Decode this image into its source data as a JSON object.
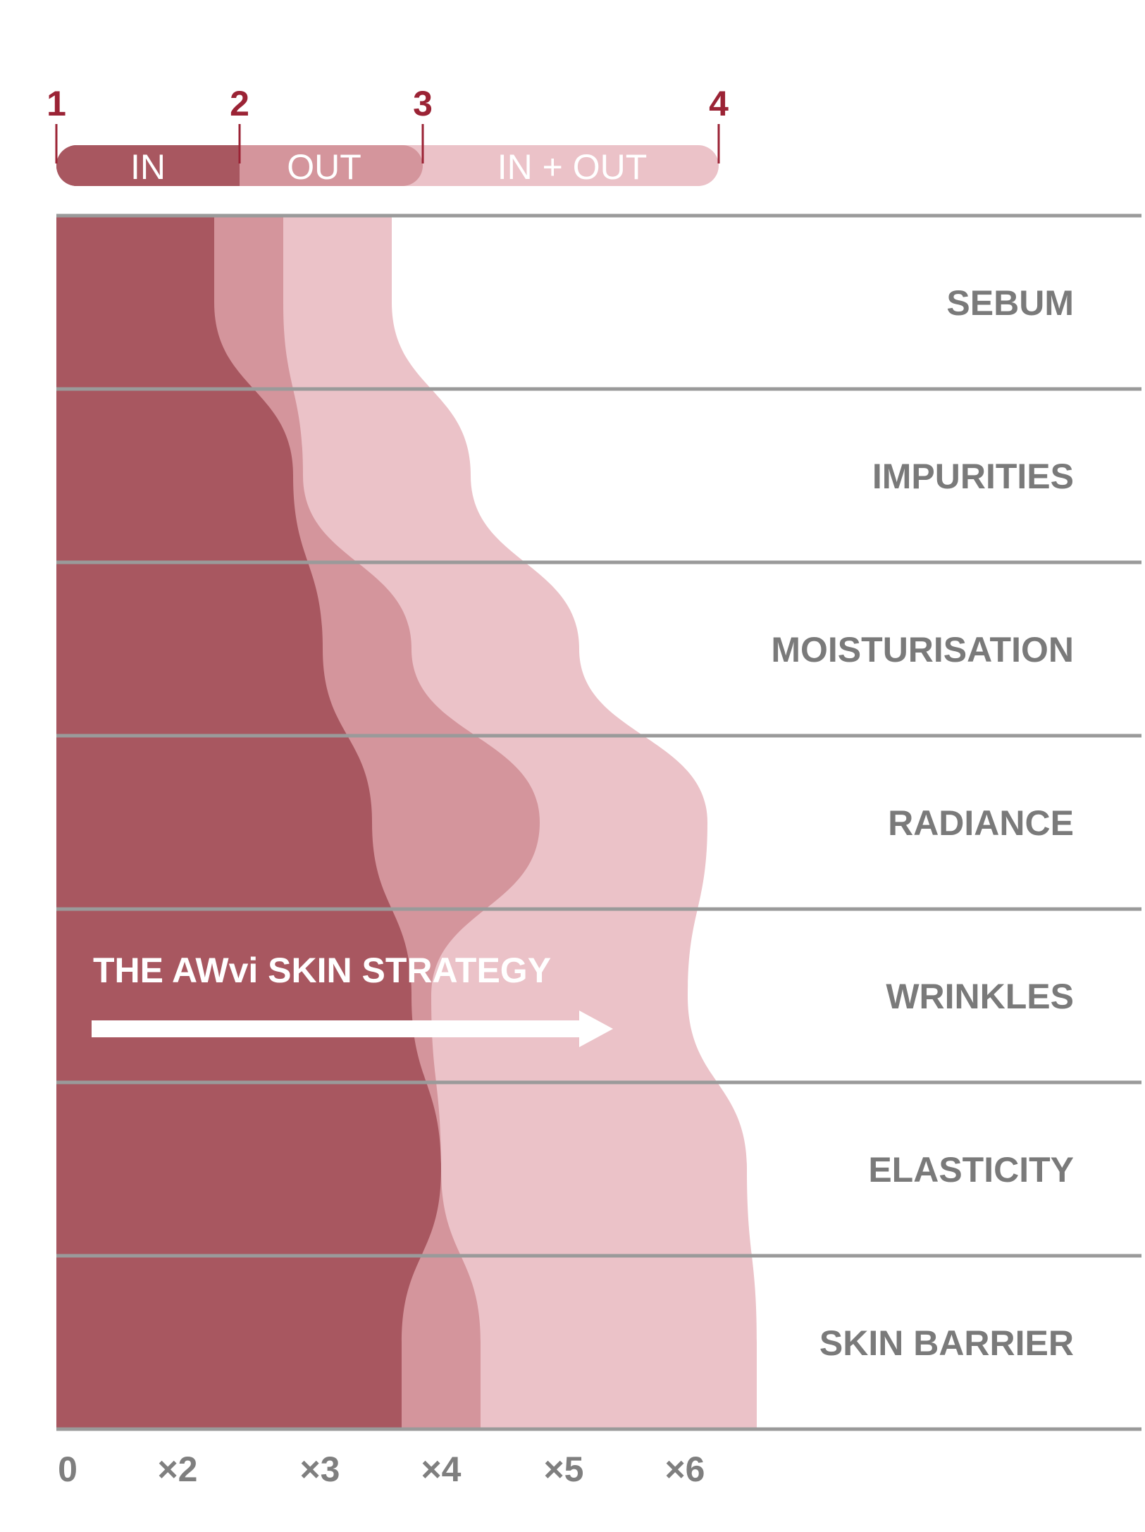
{
  "chart_data": {
    "type": "area",
    "orientation": "horizontal",
    "scale_markers": [
      "1",
      "2",
      "3",
      "4"
    ],
    "segments": [
      {
        "label": "IN",
        "color": "#a85760"
      },
      {
        "label": "OUT",
        "color": "#d4959c"
      },
      {
        "label": "IN + OUT",
        "color": "#ebc2c8"
      }
    ],
    "categories": [
      "SEBUM",
      "IMPURITIES",
      "MOISTURISATION",
      "RADIANCE",
      "WRINKLES",
      "ELASTICITY",
      "SKIN BARRIER"
    ],
    "x_ticks": [
      "0",
      "×2",
      "×3",
      "×4",
      "×5",
      "×6"
    ],
    "series": [
      {
        "name": "IN",
        "color": "#a85760",
        "values": [
          1.6,
          2.4,
          2.7,
          3.2,
          3.6,
          3.9,
          3.5
        ]
      },
      {
        "name": "OUT",
        "color": "#d4959c",
        "values": [
          2.3,
          2.5,
          3.6,
          4.9,
          3.8,
          3.9,
          4.3
        ]
      },
      {
        "name": "IN + OUT",
        "color": "#ebc2c8",
        "values": [
          3.4,
          4.2,
          5.3,
          6.6,
          6.4,
          7.0,
          7.1
        ]
      }
    ],
    "annotation": "THE AWvi SKIN STRATEGY",
    "accent_color": "#9b2335",
    "grid": true
  }
}
